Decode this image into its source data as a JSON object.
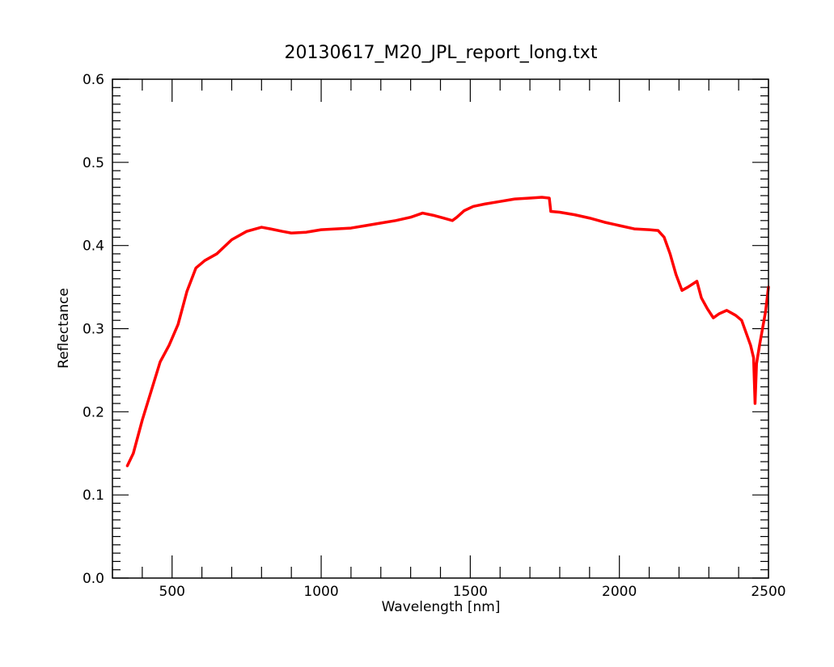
{
  "chart_data": {
    "type": "line",
    "title": "20130617_M20_JPL_report_long.txt",
    "xlabel": "Wavelength [nm]",
    "ylabel": "Reflectance",
    "xlim": [
      300,
      2500
    ],
    "ylim": [
      0.0,
      0.6
    ],
    "x_tick_values": [
      500,
      1000,
      1500,
      2000,
      2500
    ],
    "x_tick_labels": [
      "500",
      "1000",
      "1500",
      "2000",
      "2500"
    ],
    "x_minor_step": 100,
    "y_tick_values": [
      0.0,
      0.1,
      0.2,
      0.3,
      0.4,
      0.5,
      0.6
    ],
    "y_tick_labels": [
      "0.0",
      "0.1",
      "0.2",
      "0.3",
      "0.4",
      "0.5",
      "0.6"
    ],
    "y_minor_step": 0.01,
    "grid": false,
    "series": [
      {
        "color": "#ff0000",
        "x": [
          350,
          370,
          400,
          430,
          460,
          490,
          520,
          550,
          580,
          610,
          650,
          700,
          750,
          800,
          830,
          870,
          900,
          950,
          1000,
          1050,
          1100,
          1150,
          1200,
          1250,
          1300,
          1340,
          1380,
          1410,
          1440,
          1455,
          1480,
          1510,
          1550,
          1600,
          1650,
          1700,
          1740,
          1765,
          1770,
          1800,
          1850,
          1900,
          1950,
          2000,
          2050,
          2100,
          2130,
          2150,
          2170,
          2190,
          2210,
          2230,
          2260,
          2275,
          2295,
          2315,
          2335,
          2360,
          2390,
          2410,
          2430,
          2440,
          2450,
          2455,
          2460,
          2470,
          2480,
          2490,
          2500
        ],
        "y": [
          0.135,
          0.15,
          0.19,
          0.225,
          0.26,
          0.28,
          0.305,
          0.345,
          0.373,
          0.382,
          0.39,
          0.407,
          0.417,
          0.422,
          0.42,
          0.417,
          0.415,
          0.416,
          0.419,
          0.42,
          0.421,
          0.424,
          0.427,
          0.43,
          0.434,
          0.439,
          0.436,
          0.433,
          0.43,
          0.434,
          0.442,
          0.447,
          0.45,
          0.453,
          0.456,
          0.457,
          0.458,
          0.457,
          0.441,
          0.44,
          0.437,
          0.433,
          0.428,
          0.424,
          0.42,
          0.419,
          0.418,
          0.41,
          0.39,
          0.365,
          0.346,
          0.35,
          0.357,
          0.337,
          0.324,
          0.313,
          0.318,
          0.322,
          0.316,
          0.31,
          0.29,
          0.28,
          0.265,
          0.21,
          0.258,
          0.28,
          0.3,
          0.32,
          0.35
        ]
      }
    ]
  }
}
